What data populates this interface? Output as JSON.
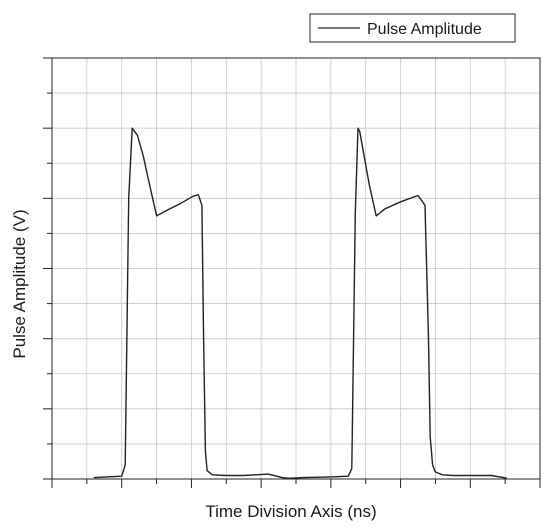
{
  "chart_data": {
    "type": "line",
    "title": "",
    "xlabel": "Time Division Axis (ns)",
    "ylabel": "Pulse Amplitude (V)",
    "xlim": [
      0,
      14
    ],
    "ylim": [
      0,
      6
    ],
    "x_tick_labels_shown": false,
    "y_tick_labels_shown": false,
    "grid": true,
    "legend": {
      "position": "top-right",
      "entries": [
        "Pulse Amplitude"
      ]
    },
    "series": [
      {
        "name": "Pulse Amplitude",
        "color": "#222222",
        "x": [
          1.2,
          2.0,
          2.1,
          2.2,
          2.3,
          2.45,
          2.62,
          2.75,
          3.0,
          3.3,
          3.7,
          4.05,
          4.2,
          4.3,
          4.35,
          4.4,
          4.45,
          4.6,
          5.0,
          5.5,
          6.2,
          6.6,
          6.8,
          7.2,
          8.0,
          8.5,
          8.6,
          8.7,
          8.78,
          8.83,
          8.92,
          9.1,
          9.3,
          9.55,
          10.0,
          10.5,
          10.7,
          10.8,
          10.85,
          10.92,
          11.0,
          11.2,
          11.5,
          12.0,
          12.6,
          12.95,
          13.05
        ],
        "y": [
          0.02,
          0.04,
          0.2,
          4.0,
          5.0,
          4.9,
          4.6,
          4.3,
          3.75,
          3.83,
          3.93,
          4.03,
          4.05,
          3.9,
          2.0,
          0.4,
          0.12,
          0.06,
          0.05,
          0.05,
          0.07,
          0.02,
          0.01,
          0.02,
          0.03,
          0.04,
          0.15,
          3.8,
          5.0,
          4.95,
          4.7,
          4.2,
          3.75,
          3.85,
          3.95,
          4.04,
          3.9,
          2.0,
          0.6,
          0.2,
          0.1,
          0.06,
          0.05,
          0.05,
          0.05,
          0.02,
          0.01
        ]
      }
    ]
  }
}
